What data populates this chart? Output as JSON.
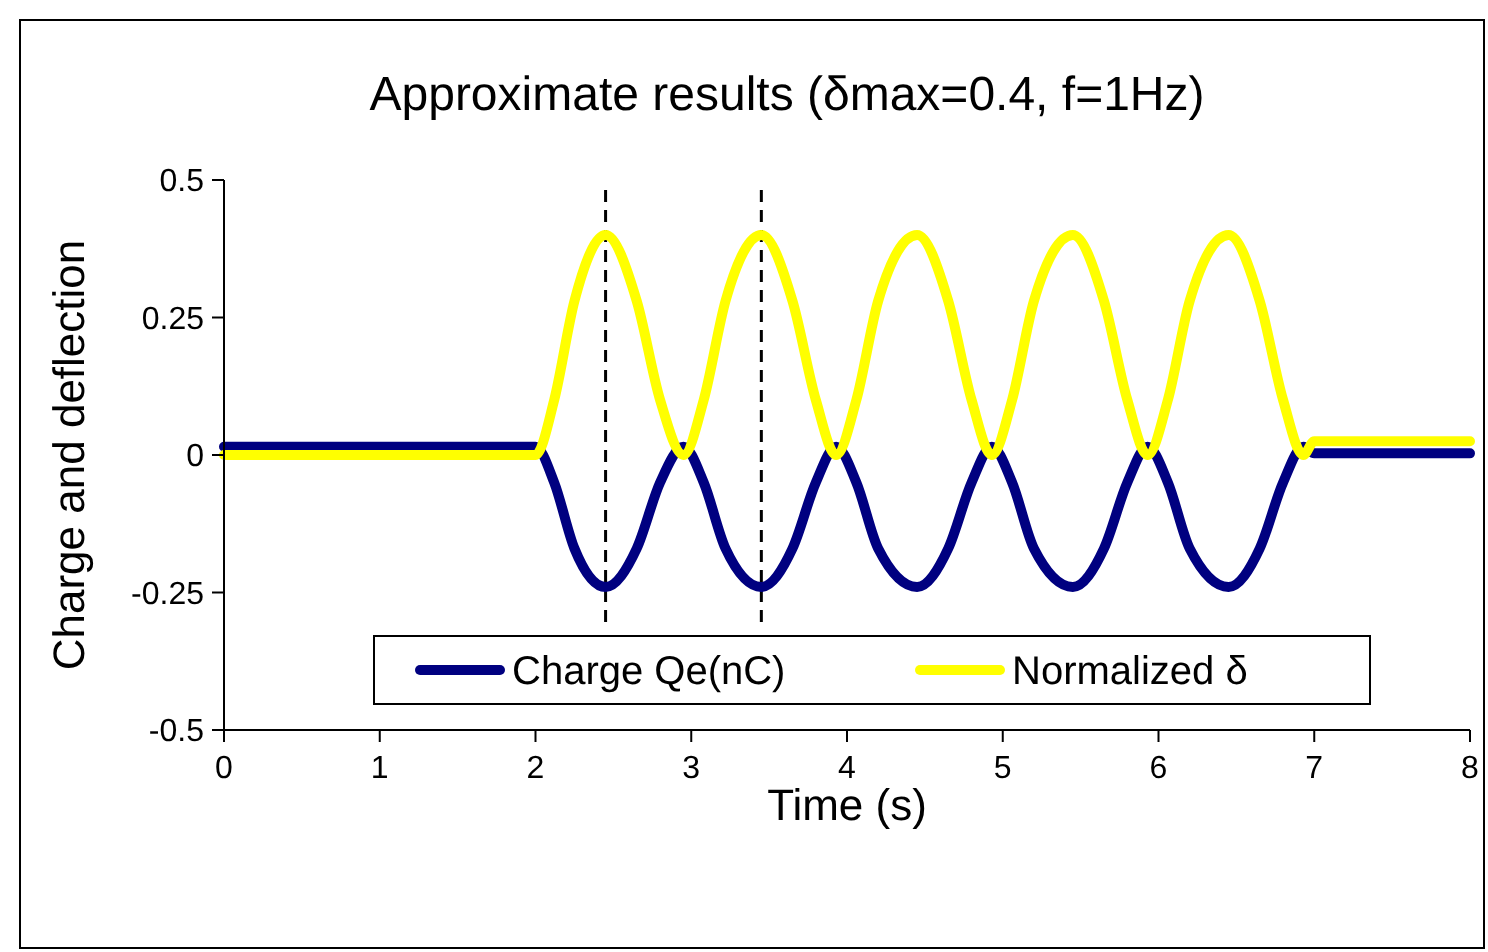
{
  "chart_data": {
    "type": "line",
    "title": "Approximate results (δmax=0.4, f=1Hz)",
    "xlabel": "Time (s)",
    "ylabel": "Charge and deflection",
    "xlim": [
      0,
      8
    ],
    "xticks": [
      0,
      1,
      2,
      3,
      4,
      5,
      6,
      7,
      8
    ],
    "ylim": [
      -0.5,
      0.5
    ],
    "yticks": [
      -0.5,
      -0.25,
      0,
      0.25,
      0.5
    ],
    "grid": false,
    "legend": "bottom",
    "line_style": "solid",
    "series": [
      {
        "name": "Charge Qe(nC)",
        "color": "#000080",
        "x": [
          0,
          2,
          2.12,
          2.25,
          2.45,
          2.65,
          2.8,
          2.95,
          3.08,
          3.22,
          3.45,
          3.65,
          3.8,
          3.93,
          4.06,
          4.2,
          4.45,
          4.65,
          4.8,
          4.93,
          5.06,
          5.2,
          5.45,
          5.65,
          5.8,
          5.93,
          6.06,
          6.2,
          6.45,
          6.65,
          6.8,
          6.93,
          7.0,
          8
        ],
        "values": [
          0.015,
          0.015,
          -0.05,
          -0.17,
          -0.24,
          -0.17,
          -0.05,
          0.015,
          -0.05,
          -0.17,
          -0.24,
          -0.17,
          -0.05,
          0.015,
          -0.05,
          -0.17,
          -0.24,
          -0.17,
          -0.05,
          0.015,
          -0.05,
          -0.17,
          -0.24,
          -0.17,
          -0.05,
          0.015,
          -0.05,
          -0.17,
          -0.24,
          -0.17,
          -0.05,
          0.015,
          0.003,
          0.003
        ]
      },
      {
        "name": "Normalized δ",
        "color": "#ffff00",
        "x": [
          0,
          2,
          2.12,
          2.25,
          2.45,
          2.65,
          2.8,
          2.95,
          3.08,
          3.22,
          3.45,
          3.65,
          3.8,
          3.93,
          4.06,
          4.2,
          4.45,
          4.65,
          4.8,
          4.93,
          5.06,
          5.2,
          5.45,
          5.65,
          5.8,
          5.93,
          6.06,
          6.2,
          6.45,
          6.65,
          6.8,
          6.93,
          7.0,
          8
        ],
        "values": [
          0,
          0,
          0.1,
          0.28,
          0.4,
          0.28,
          0.1,
          0,
          0.1,
          0.28,
          0.4,
          0.28,
          0.1,
          0,
          0.1,
          0.28,
          0.4,
          0.28,
          0.1,
          0,
          0.1,
          0.28,
          0.4,
          0.28,
          0.1,
          0,
          0.1,
          0.28,
          0.4,
          0.28,
          0.1,
          0,
          0.025,
          0.025
        ]
      }
    ],
    "ref_lines": [
      {
        "axis": "x",
        "value": 2.45,
        "color": "#000000",
        "line_style": "dashed"
      },
      {
        "axis": "x",
        "value": 3.45,
        "color": "#000000",
        "line_style": "dashed"
      }
    ]
  }
}
